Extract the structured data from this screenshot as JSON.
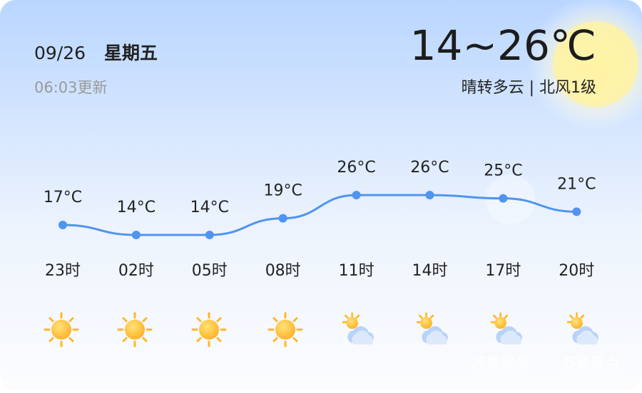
{
  "header": {
    "date": "09/26",
    "weekday": "星期五",
    "updated": "06:03更新",
    "temp_range": "14~26℃",
    "description": "晴转多云 | 北风1级"
  },
  "chart_data": {
    "type": "line",
    "categories": [
      "23时",
      "02时",
      "05时",
      "08时",
      "11时",
      "14时",
      "17时",
      "20时"
    ],
    "values": [
      17,
      14,
      14,
      19,
      26,
      26,
      25,
      21
    ],
    "value_labels": [
      "17°C",
      "14°C",
      "14°C",
      "19°C",
      "26°C",
      "26°C",
      "25°C",
      "21°C"
    ],
    "color": "#4f94f0"
  },
  "watermark": {
    "left": "齐鲁晚报",
    "right": "齐鲁壹点"
  }
}
